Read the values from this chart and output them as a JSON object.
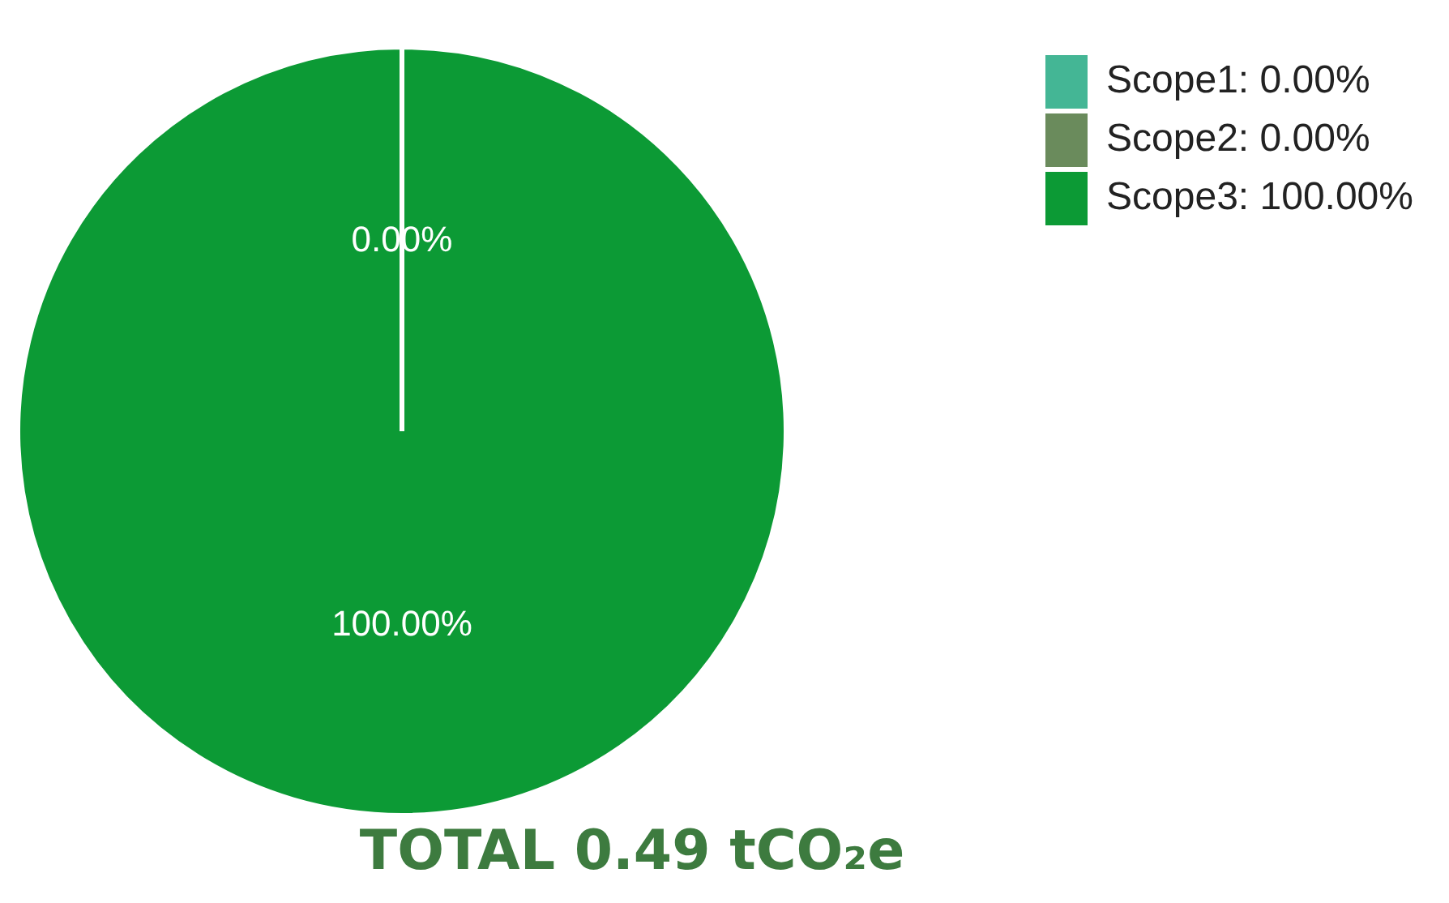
{
  "chart_data": {
    "type": "pie",
    "title": "TOTAL 0.49 tCO₂e",
    "categories": [
      "Scope1: 0.00%",
      "Scope2: 0.00%",
      "Scope3: 100.00%"
    ],
    "values": [
      0,
      0,
      100
    ],
    "colors": [
      "#44b695",
      "#6a8b5c",
      "#0c9a35"
    ],
    "value_labels": [
      "0.00%",
      null,
      "100.00%"
    ],
    "legend": "top right"
  }
}
